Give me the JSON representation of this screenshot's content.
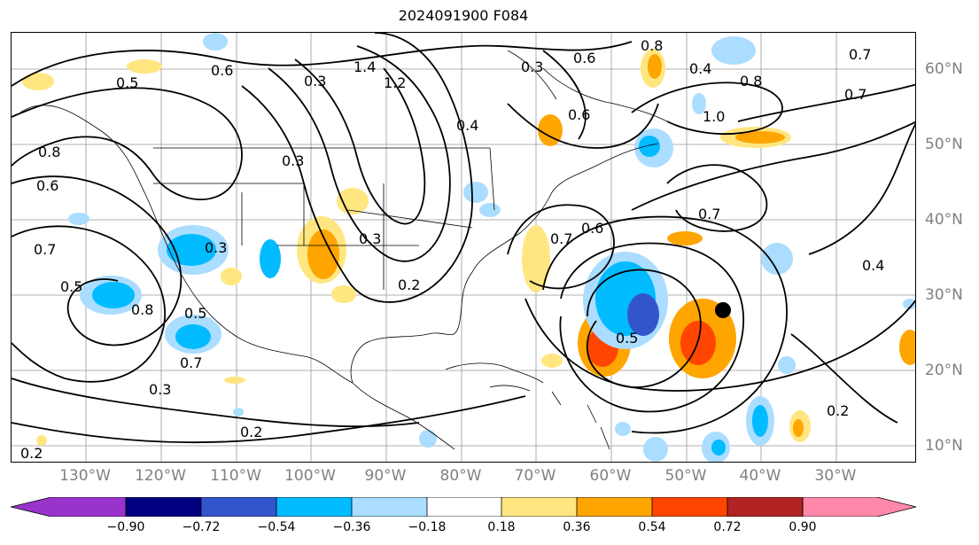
{
  "title": "2024091900 F084",
  "lat_labels": [
    "60°N",
    "50°N",
    "40°N",
    "30°N",
    "20°N",
    "10°N"
  ],
  "lon_labels": [
    "130°W",
    "120°W",
    "110°W",
    "100°W",
    "90°W",
    "80°W",
    "70°W",
    "60°W",
    "50°W",
    "40°W",
    "30°W"
  ],
  "contour_labels": {
    "c04": "0.4",
    "c05": "0.5",
    "c06": "0.6",
    "c07": "0.7",
    "c08": "0.8",
    "c10": "1.0",
    "c12": "1.2",
    "c14": "1.4",
    "c02": "0.2",
    "c03": "0.3"
  },
  "colorbar": {
    "ticks": [
      "−0.90",
      "−0.72",
      "−0.54",
      "−0.36",
      "−0.18",
      "0.18",
      "0.36",
      "0.54",
      "0.72",
      "0.90"
    ],
    "colors": [
      "#9933cc",
      "#000080",
      "#3355cc",
      "#00bbff",
      "#aaddff",
      "#ffffff",
      "#ffe680",
      "#ffa500",
      "#ff4500",
      "#b22222",
      "#ff88aa"
    ]
  }
}
